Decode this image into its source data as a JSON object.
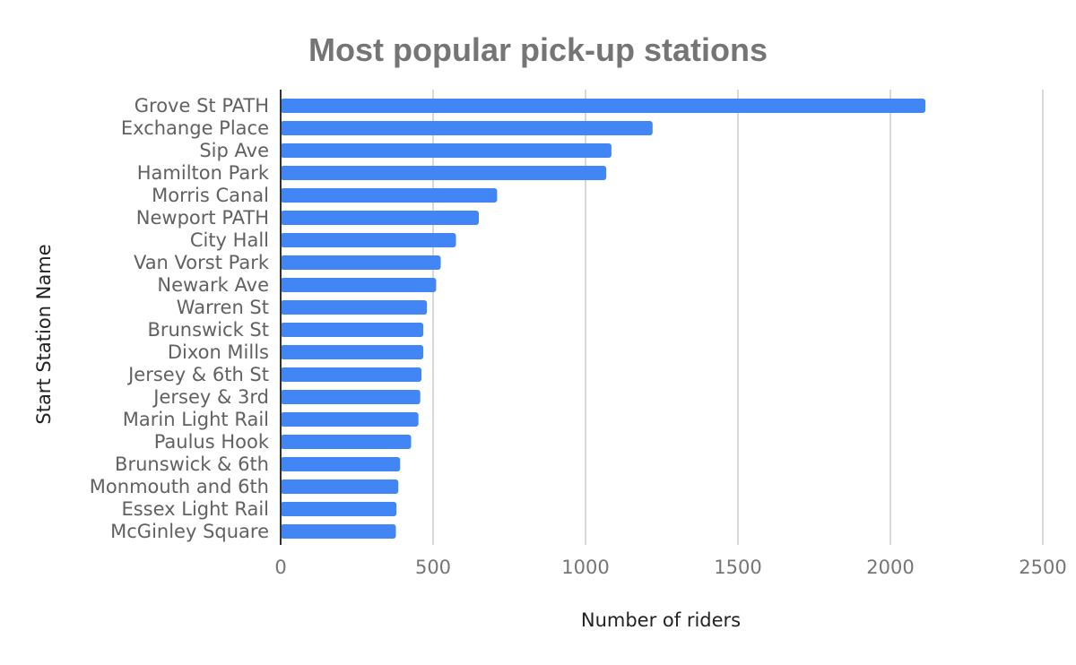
{
  "chart_data": {
    "type": "bar",
    "orientation": "horizontal",
    "title": "Most popular pick-up stations",
    "xlabel": "Number of riders",
    "ylabel": "Start Station Name",
    "xlim": [
      0,
      2500
    ],
    "xticks": [
      "0",
      "500",
      "1000",
      "1500",
      "2000",
      "2500"
    ],
    "grid": "vertical",
    "legend": "none",
    "bar_color": "#4285f4",
    "categories": [
      "Grove St PATH",
      "Exchange Place",
      "Sip Ave",
      "Hamilton Park",
      "Morris Canal",
      "Newport PATH",
      "City Hall",
      "Van Vorst Park",
      "Newark Ave",
      "Warren St",
      "Brunswick St",
      "Dixon Mills",
      "Jersey & 6th St",
      "Jersey & 3rd",
      "Marin Light Rail",
      "Paulus Hook",
      "Brunswick & 6th",
      "Monmouth and 6th",
      "Essex Light Rail",
      "McGinley Square"
    ],
    "values": [
      2115,
      1220,
      1085,
      1068,
      710,
      650,
      575,
      525,
      510,
      480,
      468,
      468,
      462,
      458,
      452,
      428,
      392,
      386,
      380,
      378
    ]
  }
}
